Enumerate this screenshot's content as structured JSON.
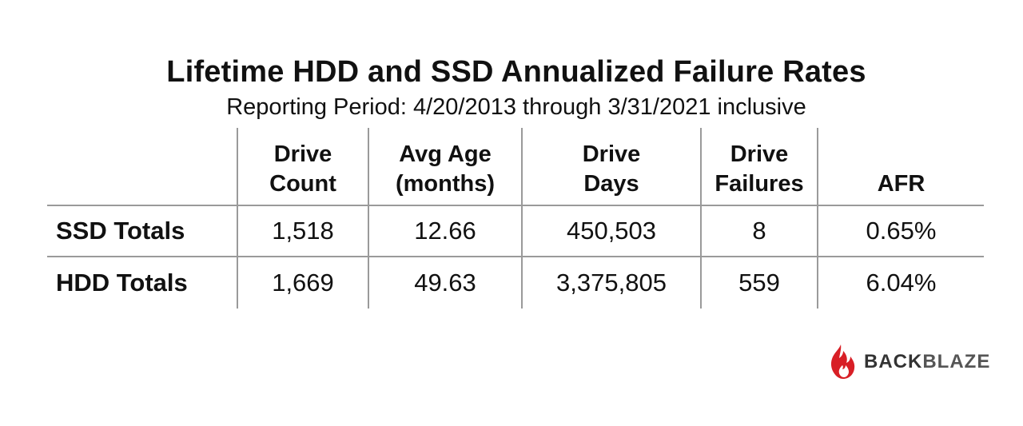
{
  "chart_data": {
    "type": "table",
    "title": "Lifetime HDD and SSD Annualized Failure Rates",
    "subtitle": "Reporting Period: 4/20/2013 through 3/31/2021 inclusive",
    "columns": [
      [
        "Drive",
        "Count"
      ],
      [
        "Avg Age",
        "(months)"
      ],
      [
        "Drive",
        "Days"
      ],
      [
        "Drive",
        "Failures"
      ],
      [
        "",
        "AFR"
      ]
    ],
    "rows": [
      {
        "label": "SSD Totals",
        "values": [
          "1,518",
          "12.66",
          "450,503",
          "8",
          "0.65%"
        ]
      },
      {
        "label": "HDD Totals",
        "values": [
          "1,669",
          "49.63",
          "3,375,805",
          "559",
          "6.04%"
        ]
      }
    ]
  },
  "branding": {
    "logo_icon": "backblaze-flame-icon",
    "logo_text_part1": "BACK",
    "logo_text_part2": "BLAZE",
    "logo_color": "#d81f26"
  }
}
